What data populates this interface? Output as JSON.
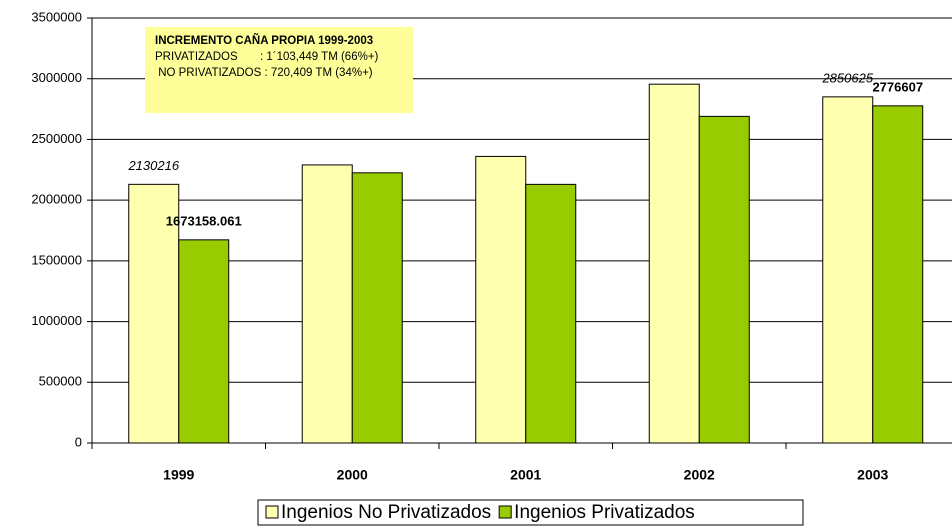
{
  "chart_data": {
    "type": "bar",
    "categories": [
      "1999",
      "2000",
      "2001",
      "2002",
      "2003"
    ],
    "series": [
      {
        "name": "Ingenios No Privatizados",
        "color": "#ffffb0",
        "values": [
          2130216,
          2290000,
          2360000,
          2955000,
          2850625
        ],
        "value_labels": [
          "2130216",
          null,
          null,
          null,
          "2850625"
        ]
      },
      {
        "name": "Ingenios Privatizados",
        "color": "#99cc00",
        "values": [
          1673158.061,
          2225000,
          2130000,
          2690000,
          2776607
        ],
        "value_labels": [
          "1673158.061",
          null,
          null,
          null,
          "2776607"
        ]
      }
    ],
    "ylim": [
      0,
      3500000
    ],
    "yticks": [
      0,
      500000,
      1000000,
      1500000,
      2000000,
      2500000,
      3000000,
      3500000
    ],
    "grid": true,
    "legend": "bottom",
    "annotation": {
      "lines": [
        "INCREMENTO CAÑA PROPIA 1999-2003",
        "PRIVATIZADOS       : 1´103,449 TM (66%+)",
        " NO PRIVATIZADOS : 720,409 TM (34%+)"
      ],
      "color": "#ffff99"
    }
  }
}
